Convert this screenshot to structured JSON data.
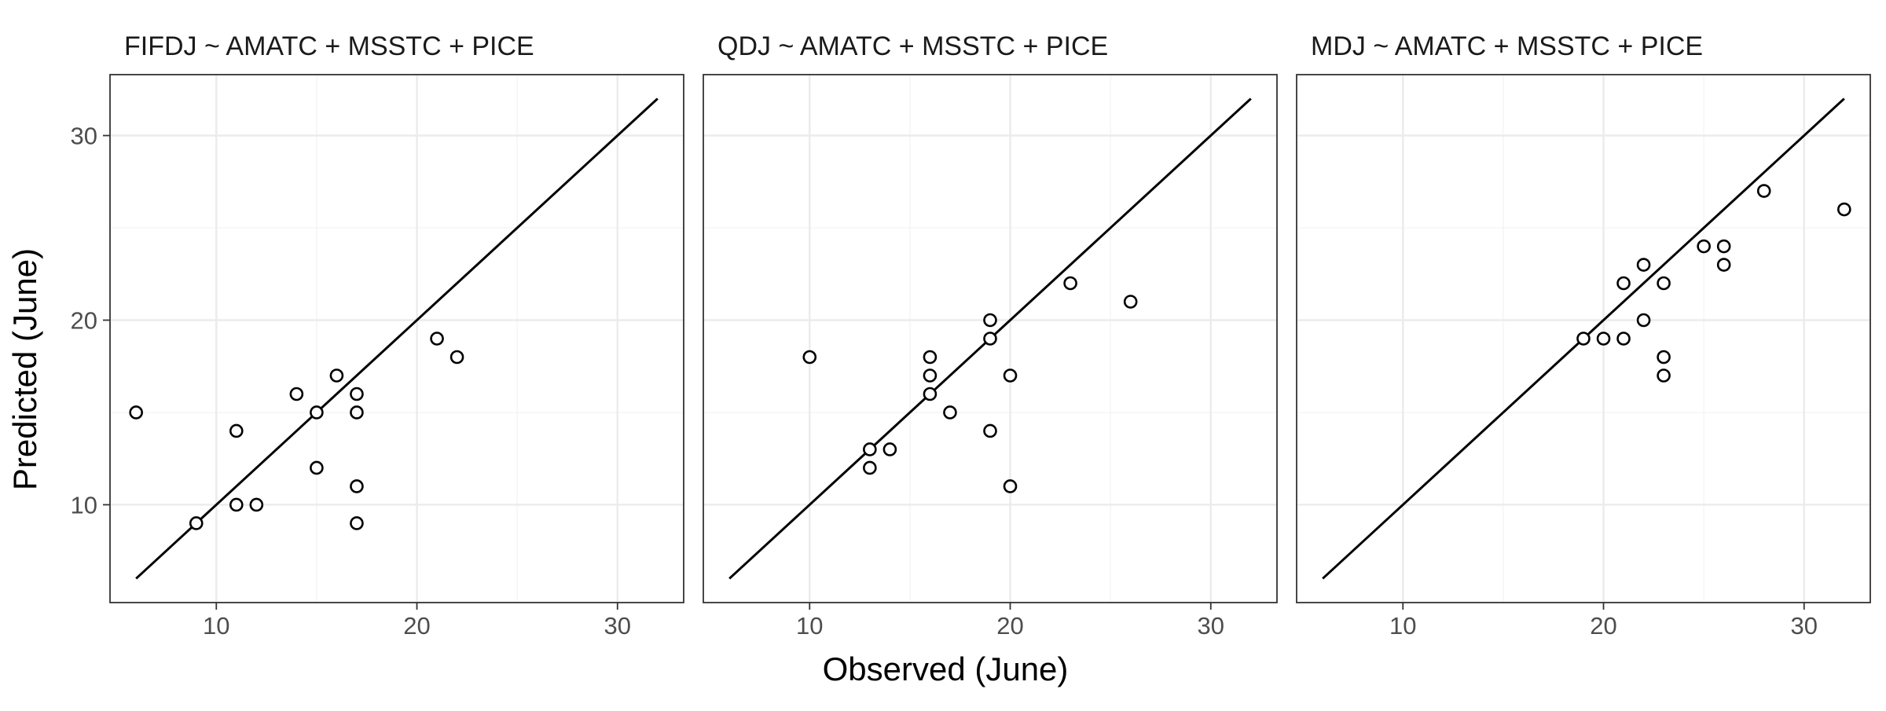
{
  "chart_data": {
    "type": "scatter",
    "xlabel": "Observed (June)",
    "ylabel": "Predicted (June)",
    "xlim": [
      4.7,
      33.3
    ],
    "ylim": [
      4.7,
      33.3
    ],
    "x_ticks": [
      10,
      20,
      30
    ],
    "y_ticks": [
      10,
      20,
      30
    ],
    "grid": true,
    "reference_line": {
      "type": "identity",
      "from": 6,
      "to": 32
    },
    "panels": [
      {
        "title": "FIFDJ ~ AMATC + MSSTC + PICE",
        "points": [
          {
            "x": 6,
            "y": 15
          },
          {
            "x": 9,
            "y": 9
          },
          {
            "x": 11,
            "y": 14
          },
          {
            "x": 11,
            "y": 10
          },
          {
            "x": 12,
            "y": 10
          },
          {
            "x": 14,
            "y": 16
          },
          {
            "x": 15,
            "y": 15
          },
          {
            "x": 15,
            "y": 12
          },
          {
            "x": 16,
            "y": 17
          },
          {
            "x": 17,
            "y": 16
          },
          {
            "x": 17,
            "y": 15
          },
          {
            "x": 17,
            "y": 11
          },
          {
            "x": 17,
            "y": 9
          },
          {
            "x": 21,
            "y": 19
          },
          {
            "x": 22,
            "y": 18
          }
        ]
      },
      {
        "title": "QDJ ~ AMATC + MSSTC + PICE",
        "points": [
          {
            "x": 10,
            "y": 18
          },
          {
            "x": 13,
            "y": 13
          },
          {
            "x": 13,
            "y": 12
          },
          {
            "x": 14,
            "y": 13
          },
          {
            "x": 16,
            "y": 18
          },
          {
            "x": 16,
            "y": 17
          },
          {
            "x": 16,
            "y": 16
          },
          {
            "x": 17,
            "y": 15
          },
          {
            "x": 19,
            "y": 20
          },
          {
            "x": 19,
            "y": 19
          },
          {
            "x": 19,
            "y": 14
          },
          {
            "x": 20,
            "y": 17
          },
          {
            "x": 20,
            "y": 11
          },
          {
            "x": 23,
            "y": 22
          },
          {
            "x": 26,
            "y": 21
          }
        ]
      },
      {
        "title": "MDJ ~ AMATC + MSSTC + PICE",
        "points": [
          {
            "x": 19,
            "y": 19
          },
          {
            "x": 20,
            "y": 19
          },
          {
            "x": 21,
            "y": 22
          },
          {
            "x": 21,
            "y": 19
          },
          {
            "x": 22,
            "y": 23
          },
          {
            "x": 22,
            "y": 20
          },
          {
            "x": 23,
            "y": 22
          },
          {
            "x": 23,
            "y": 18
          },
          {
            "x": 23,
            "y": 17
          },
          {
            "x": 25,
            "y": 24
          },
          {
            "x": 26,
            "y": 24
          },
          {
            "x": 26,
            "y": 23
          },
          {
            "x": 28,
            "y": 27
          },
          {
            "x": 32,
            "y": 26
          }
        ]
      }
    ]
  }
}
